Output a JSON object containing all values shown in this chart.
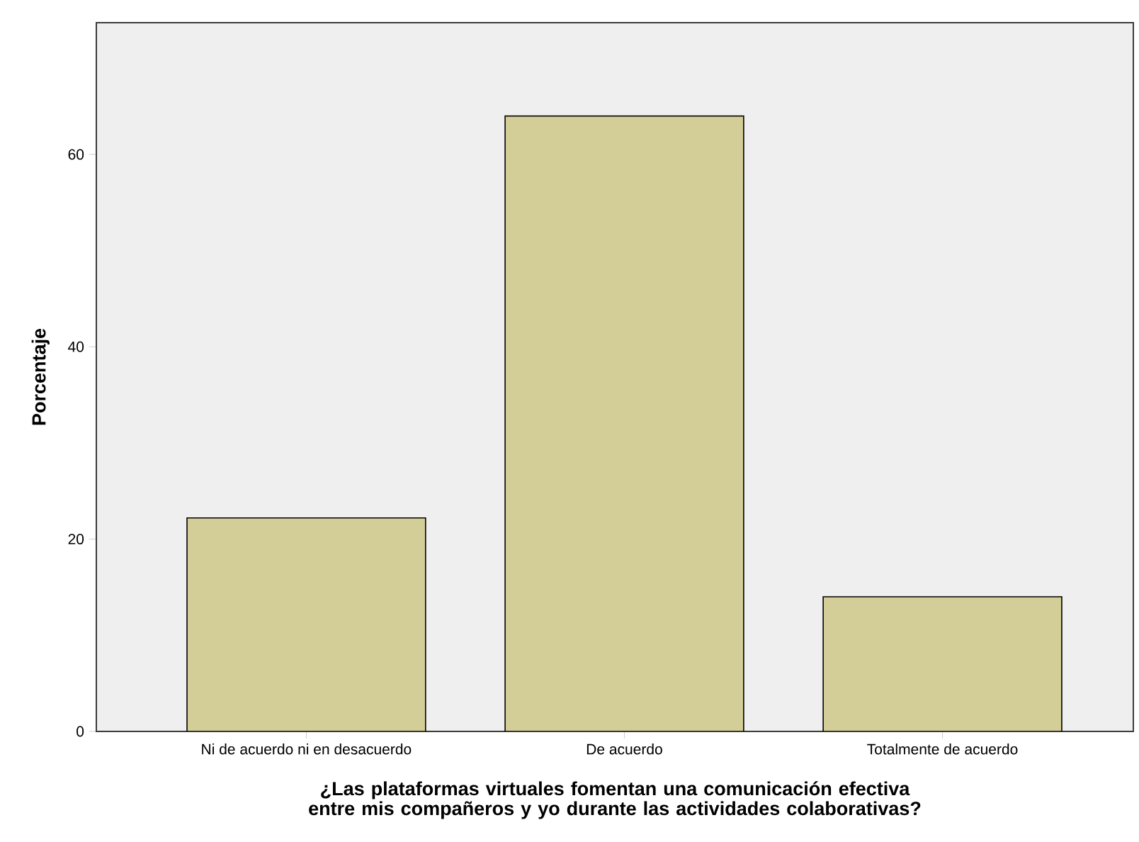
{
  "chart_data": {
    "type": "bar",
    "categories": [
      "Ni de acuerdo ni en desacuerdo",
      "De acuerdo",
      "Totalmente de acuerdo"
    ],
    "values": [
      22.2,
      64.0,
      14.0
    ],
    "color": "#d3ce97",
    "xlabel": "¿Las plataformas virtuales fomentan una comunicación efectiva entre mis compañeros y yo durante las actividades colaborativas?",
    "ylabel": "Porcentaje",
    "ylim": [
      0,
      73.7
    ],
    "yticks": [
      0,
      20,
      40,
      60
    ],
    "grid": false
  }
}
